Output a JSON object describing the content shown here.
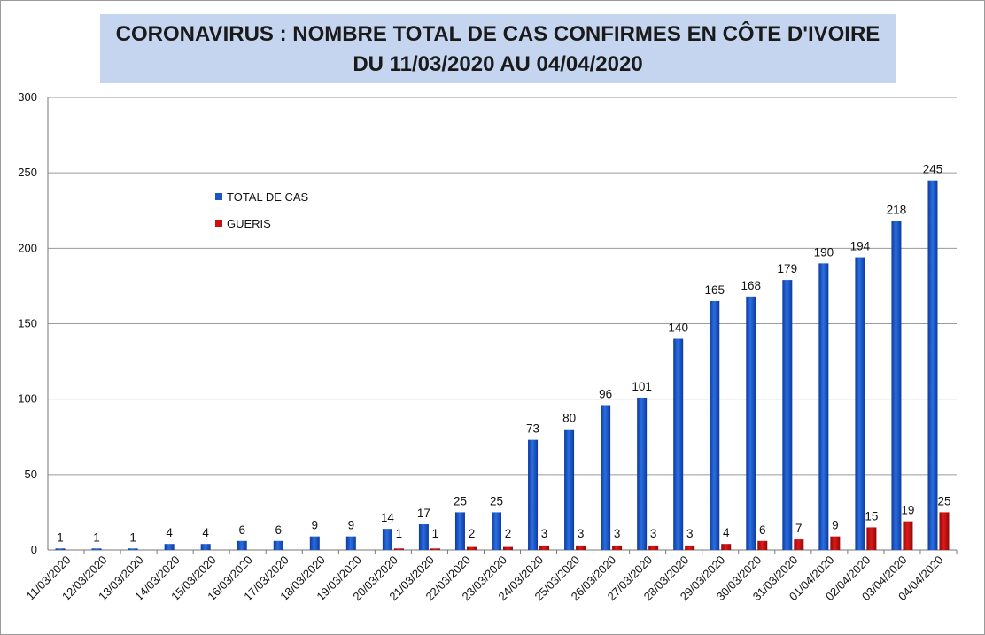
{
  "title_line1": "CORONAVIRUS : NOMBRE TOTAL DE CAS CONFIRMES EN CÔTE D'IVOIRE",
  "title_line2": "DU 11/03/2020  AU 04/04/2020",
  "chart_data": {
    "type": "bar",
    "title": "CORONAVIRUS : NOMBRE TOTAL DE CAS CONFIRMES EN CÔTE D'IVOIRE DU 11/03/2020 AU 04/04/2020",
    "xlabel": "",
    "ylabel": "",
    "ylim": [
      0,
      300
    ],
    "yticks": [
      0,
      50,
      100,
      150,
      200,
      250,
      300
    ],
    "grid": true,
    "legend_position": "upper-left",
    "categories": [
      "11/03/2020",
      "12/03/2020",
      "13/03/2020",
      "14/03/2020",
      "15/03/2020",
      "16/03/2020",
      "17/03/2020",
      "18/03/2020",
      "19/03/2020",
      "20/03/2020",
      "21/03/2020",
      "22/03/2020",
      "23/03/2020",
      "24/03/2020",
      "25/03/2020",
      "26/03/2020",
      "27/03/2020",
      "28/03/2020",
      "29/03/2020",
      "30/03/2020",
      "31/03/2020",
      "01/04/2020",
      "02/04/2020",
      "03/04/2020",
      "04/04/2020"
    ],
    "series": [
      {
        "name": "TOTAL DE CAS",
        "color": "#1a56c8",
        "values": [
          1,
          1,
          1,
          4,
          4,
          6,
          6,
          9,
          9,
          14,
          17,
          25,
          25,
          73,
          80,
          96,
          101,
          140,
          165,
          168,
          179,
          190,
          194,
          218,
          245
        ]
      },
      {
        "name": "GUERIS",
        "color": "#cc1010",
        "values": [
          null,
          null,
          null,
          null,
          null,
          null,
          null,
          null,
          null,
          1,
          1,
          2,
          2,
          3,
          3,
          3,
          3,
          3,
          4,
          6,
          7,
          9,
          15,
          19,
          25
        ]
      }
    ]
  }
}
